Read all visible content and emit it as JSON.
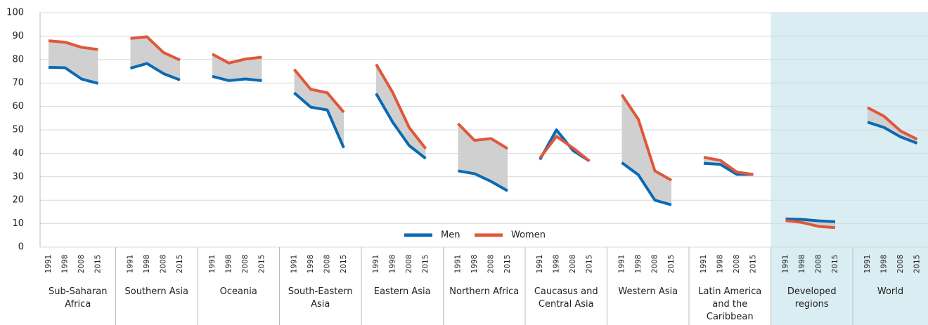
{
  "chart_data": {
    "type": "line",
    "ylim": [
      0,
      100
    ],
    "yticks": [
      0,
      10,
      20,
      30,
      40,
      50,
      60,
      70,
      80,
      90,
      100
    ],
    "grid": true,
    "legend": "bottom-center",
    "shaded_groups": [
      9,
      10
    ],
    "shade_color": "#daedf3",
    "gap_color": "#d0d0d0",
    "groups": [
      {
        "name": "Sub-Saharan Africa",
        "categories": [
          1991,
          1998,
          2008,
          2015
        ]
      },
      {
        "name": "Southern Asia",
        "categories": [
          1991,
          1998,
          2008,
          2015
        ]
      },
      {
        "name": "Oceania",
        "categories": [
          1991,
          1998,
          2008,
          2015
        ]
      },
      {
        "name": "South-Eastern Asia",
        "categories": [
          1991,
          1998,
          2008,
          2015
        ]
      },
      {
        "name": "Eastern Asia",
        "categories": [
          1991,
          1998,
          2008,
          2015
        ]
      },
      {
        "name": "Northern Africa",
        "categories": [
          1991,
          1998,
          2008,
          2015
        ]
      },
      {
        "name": "Caucasus and Central Asia",
        "categories": [
          1991,
          1998,
          2008,
          2015
        ]
      },
      {
        "name": "Western Asia",
        "categories": [
          1991,
          1998,
          2008,
          2015
        ]
      },
      {
        "name": "Latin America and the Caribbean",
        "categories": [
          1991,
          1998,
          2008,
          2015
        ]
      },
      {
        "name": "Developed regions",
        "categories": [
          1991,
          1998,
          2008,
          2015
        ]
      },
      {
        "name": "World",
        "categories": [
          1991,
          1998,
          2008,
          2015
        ]
      }
    ],
    "series": [
      {
        "name": "Men",
        "color": "#0a6ab3",
        "values": [
          [
            76.7,
            76.5,
            71.7,
            69.8
          ],
          [
            76.3,
            78.3,
            74,
            71.3
          ],
          [
            72.8,
            71,
            71.7,
            71
          ],
          [
            65.8,
            59.7,
            58.5,
            42.3
          ],
          [
            65.5,
            53.3,
            43.3,
            37.8
          ],
          [
            32.5,
            31.3,
            28,
            24
          ],
          [
            37.3,
            50,
            41.2,
            36.7
          ],
          [
            36,
            30.8,
            20,
            18
          ],
          [
            35.7,
            35.3,
            31,
            31
          ],
          [
            12,
            11.8,
            11.2,
            10.8
          ],
          [
            53.3,
            51,
            47,
            44.3
          ]
        ]
      },
      {
        "name": "Women",
        "color": "#e0573a",
        "values": [
          [
            88,
            87.4,
            85.2,
            84.3
          ],
          [
            89,
            89.7,
            83,
            79.8
          ],
          [
            82.3,
            78.5,
            80.2,
            81
          ],
          [
            75.8,
            67.3,
            65.8,
            57.5
          ],
          [
            78,
            66,
            51,
            42
          ],
          [
            52.7,
            45.5,
            46.3,
            42
          ],
          [
            38,
            47.2,
            42.3,
            36.7
          ],
          [
            65,
            54.5,
            32.5,
            28.5
          ],
          [
            38.3,
            37,
            32,
            31
          ],
          [
            11.3,
            10.5,
            8.8,
            8.3
          ],
          [
            59.5,
            55.8,
            49.5,
            46
          ]
        ]
      }
    ]
  }
}
